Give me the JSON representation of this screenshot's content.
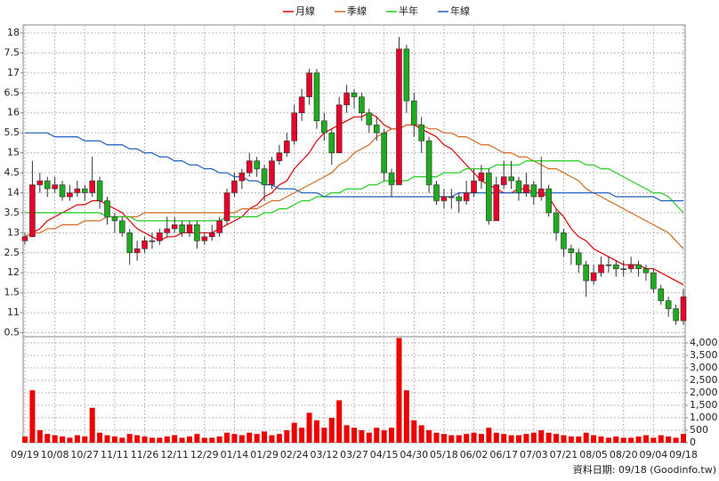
{
  "chart_data": {
    "type": "candlestick",
    "categories": [
      "09/19",
      null,
      null,
      null,
      "10/08",
      null,
      null,
      null,
      "10/27",
      null,
      null,
      null,
      "11/11",
      null,
      null,
      null,
      "11/26",
      null,
      null,
      null,
      "12/11",
      null,
      null,
      null,
      "12/29",
      null,
      null,
      null,
      "01/14",
      null,
      null,
      null,
      "01/29",
      null,
      null,
      null,
      "02/24",
      null,
      null,
      null,
      "03/12",
      null,
      null,
      null,
      "03/27",
      null,
      null,
      null,
      "04/15",
      null,
      null,
      null,
      "04/30",
      null,
      null,
      null,
      "05/18",
      null,
      null,
      null,
      "06/02",
      null,
      null,
      null,
      "06/17",
      null,
      null,
      null,
      "07/03",
      null,
      null,
      null,
      "07/21",
      null,
      null,
      null,
      "08/05",
      null,
      null,
      null,
      "08/20",
      null,
      null,
      null,
      "09/04",
      null,
      null,
      null,
      "09/18"
    ],
    "open": [
      12.8,
      12.9,
      14.2,
      14.3,
      14.1,
      14.2,
      13.9,
      14.0,
      14.1,
      14.0,
      14.3,
      13.8,
      13.4,
      13.3,
      13.0,
      12.5,
      12.6,
      12.8,
      12.8,
      13.0,
      13.1,
      13.2,
      13.0,
      13.2,
      12.8,
      12.9,
      13.0,
      13.3,
      14.0,
      14.3,
      14.5,
      14.8,
      14.6,
      14.2,
      14.8,
      15.0,
      15.3,
      16.0,
      16.4,
      17.0,
      15.8,
      15.5,
      15.0,
      16.2,
      16.5,
      16.4,
      16.0,
      15.7,
      15.5,
      14.5,
      14.2,
      17.6,
      16.3,
      15.7,
      15.3,
      14.2,
      13.8,
      13.9,
      13.9,
      13.8,
      14.0,
      14.3,
      14.5,
      13.3,
      14.2,
      14.4,
      14.3,
      14.0,
      14.2,
      13.9,
      14.1,
      13.5,
      13.0,
      12.6,
      12.5,
      12.2,
      11.8,
      12.0,
      12.2,
      12.2,
      12.1,
      12.1,
      12.2,
      12.1,
      12.0,
      11.6,
      11.3,
      11.1,
      10.8
    ],
    "high": [
      13.0,
      14.8,
      14.5,
      14.4,
      14.4,
      14.3,
      14.2,
      14.3,
      14.2,
      14.9,
      14.4,
      13.9,
      13.5,
      13.4,
      13.1,
      12.8,
      12.9,
      13.0,
      13.1,
      13.4,
      13.4,
      13.3,
      13.3,
      13.3,
      13.0,
      13.2,
      13.4,
      14.1,
      14.5,
      14.6,
      15.0,
      14.9,
      14.7,
      14.9,
      15.2,
      15.5,
      16.2,
      16.6,
      17.1,
      17.1,
      16.0,
      15.6,
      16.4,
      16.7,
      16.6,
      16.5,
      16.1,
      15.9,
      15.6,
      14.6,
      17.9,
      17.7,
      16.5,
      15.9,
      15.4,
      14.3,
      14.1,
      14.1,
      14.0,
      14.3,
      14.6,
      14.7,
      14.6,
      14.4,
      14.8,
      14.8,
      14.4,
      14.5,
      14.3,
      14.9,
      14.2,
      13.6,
      13.1,
      12.7,
      12.6,
      12.3,
      12.2,
      12.4,
      12.4,
      12.3,
      12.3,
      12.4,
      12.3,
      12.2,
      12.1,
      11.7,
      11.4,
      11.2,
      11.6
    ],
    "low": [
      12.7,
      12.9,
      14.0,
      13.9,
      14.0,
      13.8,
      13.8,
      13.9,
      13.8,
      13.9,
      13.6,
      13.2,
      13.0,
      12.9,
      12.2,
      12.3,
      12.5,
      12.6,
      12.7,
      12.9,
      13.0,
      12.9,
      12.9,
      12.6,
      12.7,
      12.8,
      12.9,
      13.2,
      13.9,
      14.1,
      14.4,
      14.4,
      13.8,
      14.1,
      14.7,
      14.9,
      15.2,
      15.8,
      16.2,
      15.6,
      15.3,
      14.7,
      15.0,
      16.0,
      16.1,
      15.8,
      15.5,
      15.3,
      14.3,
      13.9,
      14.2,
      16.0,
      15.4,
      15.0,
      14.0,
      13.7,
      13.6,
      13.6,
      13.5,
      13.7,
      13.9,
      14.1,
      13.2,
      13.3,
      14.1,
      14.1,
      13.8,
      13.9,
      13.7,
      13.8,
      13.4,
      12.8,
      12.4,
      12.2,
      12.0,
      11.4,
      11.7,
      11.9,
      12.0,
      11.9,
      11.9,
      12.0,
      11.9,
      11.8,
      11.5,
      11.2,
      10.9,
      10.7,
      10.7
    ],
    "close": [
      12.9,
      14.2,
      14.3,
      14.1,
      14.2,
      13.9,
      14.0,
      14.1,
      14.0,
      14.3,
      13.8,
      13.4,
      13.3,
      13.0,
      12.5,
      12.6,
      12.8,
      12.8,
      13.0,
      13.1,
      13.2,
      13.0,
      13.2,
      12.8,
      12.9,
      13.0,
      13.3,
      14.0,
      14.3,
      14.5,
      14.8,
      14.6,
      14.2,
      14.8,
      15.0,
      15.3,
      16.0,
      16.4,
      17.0,
      15.8,
      15.5,
      15.0,
      16.2,
      16.5,
      16.4,
      16.0,
      15.7,
      15.5,
      14.5,
      14.2,
      17.6,
      16.3,
      15.7,
      15.3,
      14.2,
      13.8,
      13.9,
      13.9,
      13.8,
      14.0,
      14.3,
      14.5,
      13.3,
      14.2,
      14.4,
      14.3,
      14.0,
      14.2,
      13.9,
      14.1,
      13.5,
      13.0,
      12.6,
      12.5,
      12.2,
      11.8,
      12.0,
      12.2,
      12.2,
      12.1,
      12.1,
      12.2,
      12.1,
      12.0,
      11.6,
      11.3,
      11.1,
      10.8,
      11.4
    ],
    "up_color": "#e8002a",
    "down_color": "#1faa1f",
    "flat_color": "#555555",
    "series": [
      {
        "name": "月線",
        "color": "#e00000",
        "values": [
          12.9,
          13.0,
          13.1,
          13.3,
          13.4,
          13.5,
          13.6,
          13.7,
          13.7,
          13.8,
          13.8,
          13.7,
          13.6,
          13.5,
          13.3,
          13.1,
          13.0,
          12.9,
          12.8,
          12.9,
          12.9,
          13.0,
          13.0,
          13.0,
          13.0,
          13.0,
          13.1,
          13.2,
          13.3,
          13.4,
          13.6,
          13.7,
          13.9,
          14.0,
          14.2,
          14.3,
          14.6,
          14.8,
          15.0,
          15.3,
          15.5,
          15.6,
          15.7,
          15.8,
          15.9,
          15.9,
          16.0,
          15.9,
          15.7,
          15.6,
          15.6,
          15.7,
          15.7,
          15.6,
          15.5,
          15.4,
          15.2,
          15.1,
          14.9,
          14.7,
          14.5,
          14.3,
          14.2,
          14.1,
          14.0,
          14.0,
          14.1,
          14.1,
          14.0,
          14.0,
          13.9,
          13.6,
          13.4,
          13.1,
          12.9,
          12.8,
          12.6,
          12.5,
          12.4,
          12.3,
          12.2,
          12.2,
          12.2,
          12.1,
          12.1,
          12.0,
          11.9,
          11.8,
          11.7
        ]
      },
      {
        "name": "季線",
        "color": "#d2691e",
        "values": [
          12.9,
          13.0,
          13.0,
          13.1,
          13.1,
          13.2,
          13.2,
          13.2,
          13.3,
          13.3,
          13.3,
          13.4,
          13.4,
          13.4,
          13.4,
          13.4,
          13.5,
          13.5,
          13.5,
          13.5,
          13.5,
          13.5,
          13.5,
          13.5,
          13.5,
          13.5,
          13.5,
          13.5,
          13.5,
          13.6,
          13.6,
          13.6,
          13.7,
          13.8,
          13.8,
          13.9,
          14.0,
          14.1,
          14.2,
          14.3,
          14.4,
          14.5,
          14.7,
          14.8,
          15.0,
          15.1,
          15.2,
          15.4,
          15.5,
          15.6,
          15.6,
          15.7,
          15.7,
          15.7,
          15.6,
          15.6,
          15.5,
          15.5,
          15.4,
          15.4,
          15.3,
          15.2,
          15.2,
          15.1,
          15.0,
          15.0,
          14.9,
          14.9,
          14.8,
          14.7,
          14.6,
          14.6,
          14.5,
          14.4,
          14.3,
          14.1,
          14.0,
          13.9,
          13.8,
          13.7,
          13.6,
          13.5,
          13.4,
          13.3,
          13.2,
          13.1,
          13.0,
          12.8,
          12.6
        ]
      },
      {
        "name": "半年",
        "color": "#22cc22",
        "values": [
          13.5,
          13.5,
          13.5,
          13.5,
          13.5,
          13.5,
          13.5,
          13.5,
          13.5,
          13.5,
          13.5,
          13.4,
          13.4,
          13.4,
          13.4,
          13.3,
          13.3,
          13.3,
          13.3,
          13.3,
          13.3,
          13.3,
          13.3,
          13.3,
          13.3,
          13.3,
          13.3,
          13.4,
          13.4,
          13.4,
          13.4,
          13.4,
          13.5,
          13.5,
          13.6,
          13.6,
          13.7,
          13.8,
          13.8,
          13.9,
          13.9,
          14.0,
          14.0,
          14.1,
          14.1,
          14.1,
          14.2,
          14.2,
          14.3,
          14.3,
          14.3,
          14.3,
          14.4,
          14.4,
          14.4,
          14.4,
          14.5,
          14.5,
          14.5,
          14.6,
          14.6,
          14.6,
          14.6,
          14.7,
          14.7,
          14.7,
          14.7,
          14.8,
          14.8,
          14.8,
          14.8,
          14.8,
          14.8,
          14.8,
          14.8,
          14.7,
          14.7,
          14.6,
          14.6,
          14.5,
          14.4,
          14.3,
          14.2,
          14.1,
          14.0,
          14.0,
          13.9,
          13.7,
          13.5
        ]
      },
      {
        "name": "年線",
        "color": "#1f5fbf",
        "values": [
          15.5,
          15.5,
          15.5,
          15.5,
          15.4,
          15.4,
          15.4,
          15.4,
          15.3,
          15.3,
          15.3,
          15.2,
          15.2,
          15.2,
          15.1,
          15.1,
          15.0,
          15.0,
          14.9,
          14.9,
          14.8,
          14.8,
          14.7,
          14.7,
          14.6,
          14.6,
          14.5,
          14.5,
          14.4,
          14.4,
          14.3,
          14.3,
          14.2,
          14.2,
          14.1,
          14.1,
          14.1,
          14.0,
          14.0,
          14.0,
          13.9,
          13.9,
          13.9,
          13.9,
          13.9,
          13.9,
          13.9,
          13.9,
          13.9,
          13.9,
          13.9,
          13.9,
          13.9,
          13.9,
          13.9,
          13.9,
          13.9,
          13.9,
          14.0,
          14.0,
          14.0,
          14.0,
          14.0,
          14.0,
          14.0,
          14.0,
          14.0,
          14.0,
          14.0,
          14.0,
          14.0,
          14.0,
          14.0,
          14.0,
          14.0,
          14.0,
          14.0,
          14.0,
          14.0,
          13.9,
          13.9,
          13.9,
          13.9,
          13.9,
          13.9,
          13.8,
          13.8,
          13.8,
          13.8
        ]
      }
    ],
    "ylim": [
      10.4,
      18.2
    ],
    "yticks": [
      18,
      {
        "value": 17.5,
        "label": "7.5"
      },
      17,
      {
        "value": 16.5,
        "label": "6.5"
      },
      16,
      {
        "value": 15.5,
        "label": "5.5"
      },
      15,
      {
        "value": 14.5,
        "label": "4.5"
      },
      14,
      {
        "value": 13.5,
        "label": "3.5"
      },
      13,
      {
        "value": 12.5,
        "label": "2.5"
      },
      12,
      {
        "value": 11.5,
        "label": "1.5"
      },
      11,
      {
        "value": 10.5,
        "label": "0.5"
      }
    ],
    "grid": true,
    "volume": {
      "color": "#ee0000",
      "values": [
        250,
        2100,
        500,
        350,
        300,
        250,
        200,
        300,
        250,
        1400,
        400,
        300,
        250,
        200,
        350,
        300,
        250,
        200,
        200,
        250,
        300,
        200,
        250,
        350,
        200,
        200,
        250,
        400,
        350,
        300,
        400,
        350,
        450,
        300,
        350,
        500,
        800,
        600,
        1200,
        900,
        600,
        1000,
        1700,
        700,
        600,
        500,
        400,
        600,
        500,
        600,
        4200,
        2100,
        900,
        700,
        500,
        400,
        350,
        300,
        300,
        350,
        400,
        350,
        600,
        400,
        350,
        300,
        300,
        350,
        400,
        500,
        400,
        350,
        300,
        250,
        250,
        400,
        300,
        250,
        200,
        250,
        200,
        200,
        250,
        300,
        200,
        300,
        250,
        200,
        350
      ],
      "ylim": [
        0,
        4250
      ],
      "yticks": [
        0,
        500,
        {
          "value": 1000,
          "label": "1,000"
        },
        {
          "value": 1500,
          "label": "1,500"
        },
        {
          "value": 2000,
          "label": "2,000"
        },
        {
          "value": 2500,
          "label": "2,500"
        },
        {
          "value": 3000,
          "label": "3,000"
        },
        {
          "value": 3500,
          "label": "3,500"
        },
        {
          "value": 4000,
          "label": "4,000"
        }
      ]
    },
    "source_note": "資料日期: 09/18  (Goodinfo.tw)"
  }
}
